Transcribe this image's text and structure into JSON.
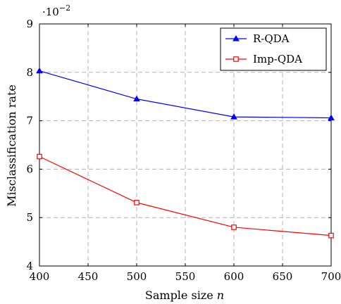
{
  "chart_data": {
    "type": "line",
    "title": "",
    "xlabel": "Sample size",
    "xlabel_var": "n",
    "ylabel": "Misclassification rate",
    "y_scale_label": "·10",
    "y_scale_exponent": "−2",
    "xlim": [
      400,
      700
    ],
    "ylim": [
      4,
      9
    ],
    "xticks": [
      400,
      450,
      500,
      550,
      600,
      650,
      700
    ],
    "yticks": [
      4,
      5,
      6,
      7,
      8,
      9
    ],
    "grid": true,
    "legend_position": "top-right",
    "x": [
      400,
      500,
      600,
      700
    ],
    "series": [
      {
        "name": "R-QDA",
        "color": "#0000ff",
        "marker": "triangle",
        "values": [
          8.03,
          7.45,
          7.08,
          7.06
        ]
      },
      {
        "name": "Imp-QDA",
        "color": "#ff0000",
        "marker": "square",
        "values": [
          6.26,
          5.31,
          4.8,
          4.63
        ]
      }
    ]
  }
}
